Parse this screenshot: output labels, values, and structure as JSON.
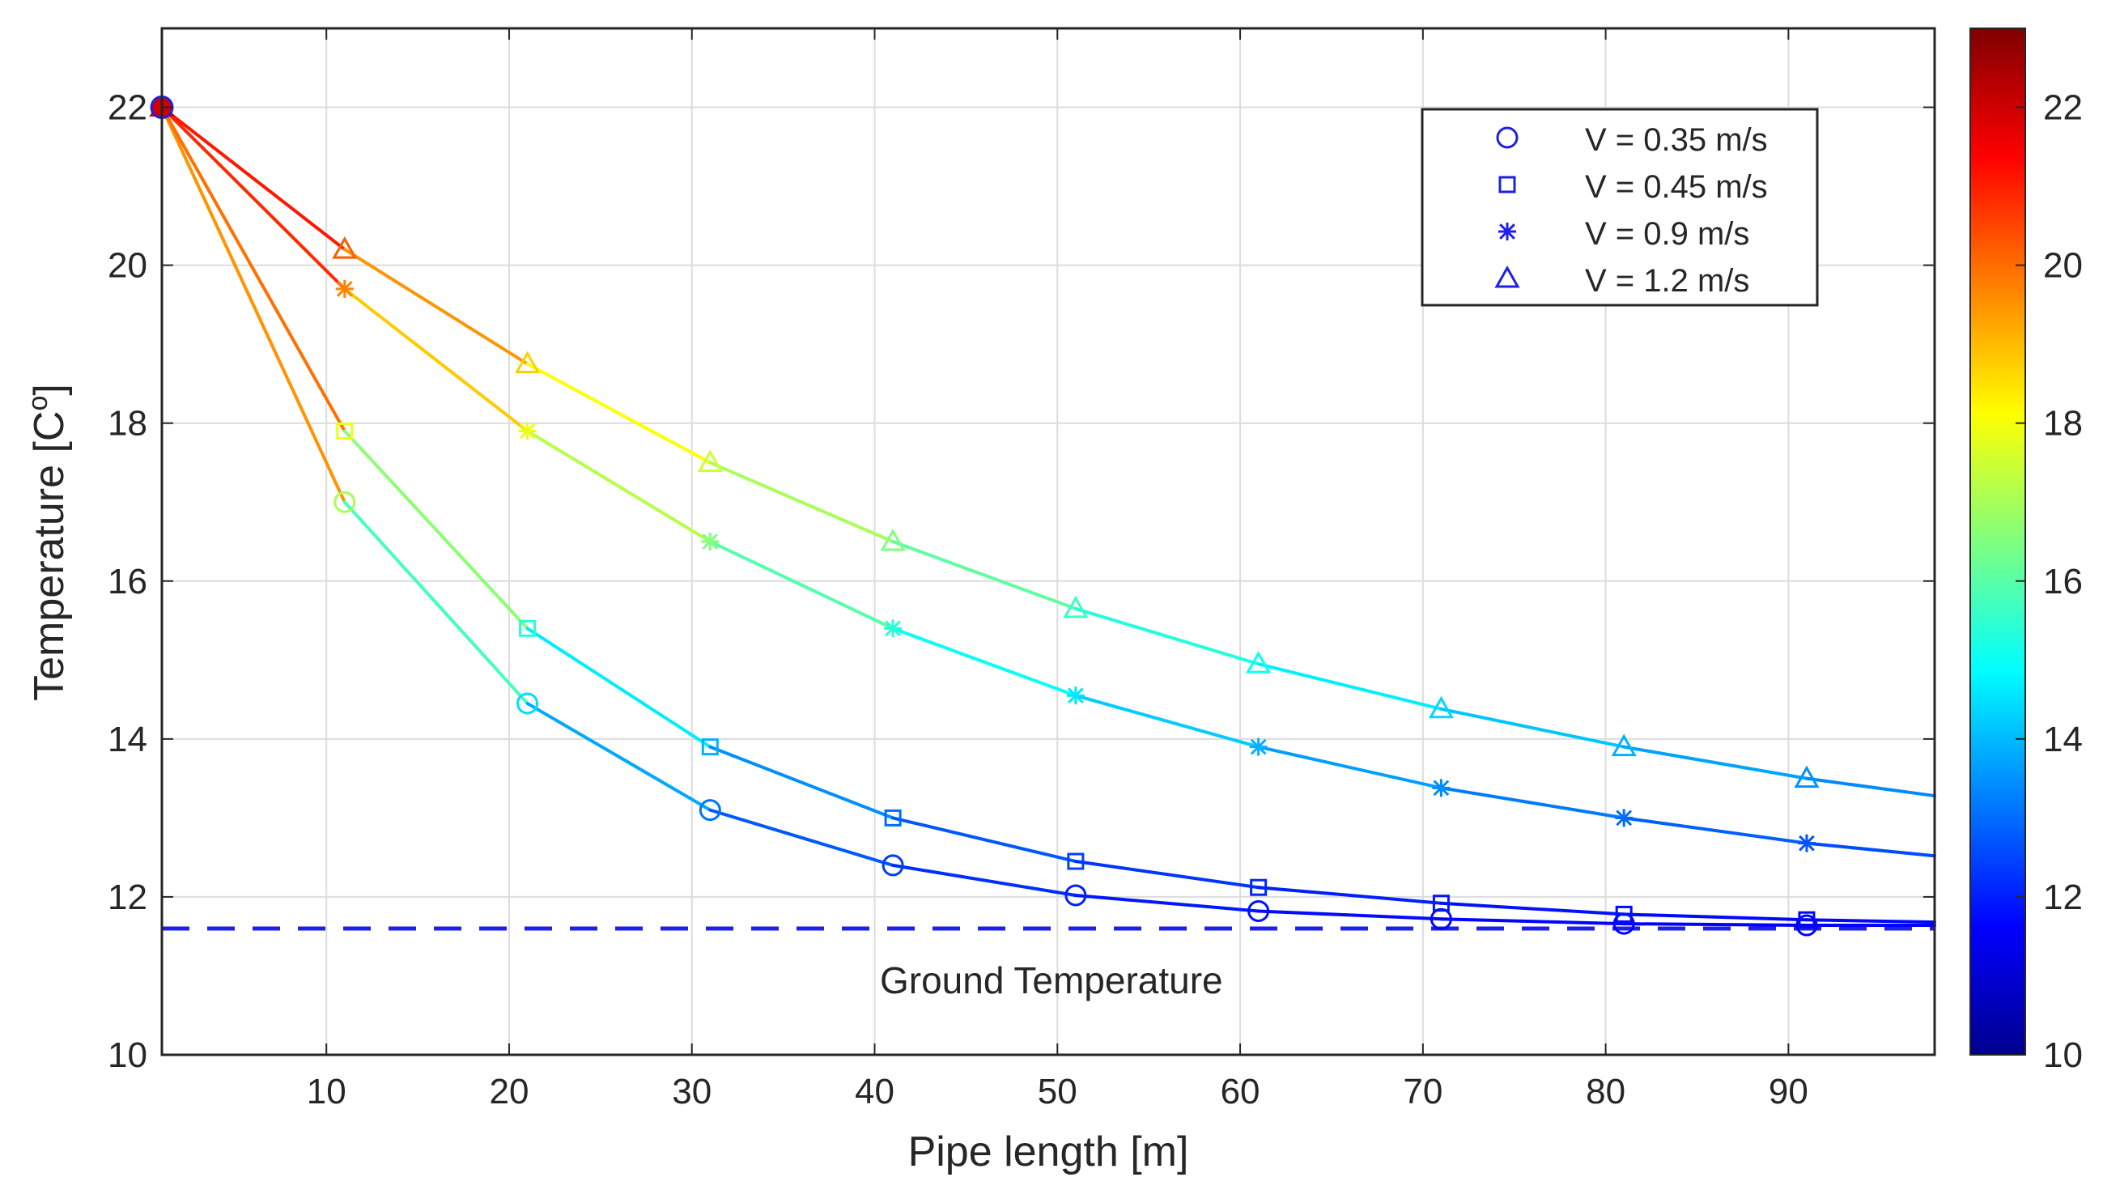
{
  "chart_data": {
    "type": "line",
    "title": "",
    "xlabel": "Pipe length [m]",
    "ylabel_base": "Temperature [C",
    "ylabel_sup": "o",
    "ylabel_end": "]",
    "xlim": [
      1,
      98
    ],
    "ylim": [
      10,
      23
    ],
    "xticks": [
      10,
      20,
      30,
      40,
      50,
      60,
      70,
      80,
      90
    ],
    "yticks": [
      10,
      12,
      14,
      16,
      18,
      20,
      22
    ],
    "grid": true,
    "legend_position": "top-right",
    "reference_line": {
      "y": 11.6,
      "label": "Ground Temperature",
      "color": "#1f1fe6"
    },
    "colorbar": {
      "min": 10,
      "max": 23,
      "ticks": [
        10,
        12,
        14,
        16,
        18,
        20,
        22
      ],
      "colormap": "jet"
    },
    "series": [
      {
        "name": "V = 0.35 m/s",
        "marker": "circle",
        "x": [
          1,
          11,
          21,
          31,
          41,
          51,
          61,
          71,
          81,
          91,
          98
        ],
        "y": [
          22.0,
          17.0,
          14.45,
          13.1,
          12.4,
          12.02,
          11.82,
          11.72,
          11.66,
          11.64,
          11.64
        ]
      },
      {
        "name": "V = 0.45 m/s",
        "marker": "square",
        "x": [
          1,
          11,
          21,
          31,
          41,
          51,
          61,
          71,
          81,
          91,
          98
        ],
        "y": [
          22.0,
          17.9,
          15.4,
          13.9,
          13.0,
          12.45,
          12.12,
          11.92,
          11.78,
          11.71,
          11.68
        ]
      },
      {
        "name": "V = 0.9 m/s",
        "marker": "asterisk",
        "x": [
          1,
          11,
          21,
          31,
          41,
          51,
          61,
          71,
          81,
          91,
          98
        ],
        "y": [
          22.0,
          19.7,
          17.9,
          16.5,
          15.4,
          14.55,
          13.9,
          13.38,
          13.0,
          12.68,
          12.52
        ]
      },
      {
        "name": "V = 1.2 m/s",
        "marker": "triangle",
        "x": [
          1,
          11,
          21,
          31,
          41,
          51,
          61,
          71,
          81,
          91,
          98
        ],
        "y": [
          22.0,
          20.2,
          18.75,
          17.5,
          16.5,
          15.65,
          14.95,
          14.38,
          13.9,
          13.5,
          13.28
        ]
      }
    ],
    "legend_marker_color": "#1f1fe6"
  }
}
